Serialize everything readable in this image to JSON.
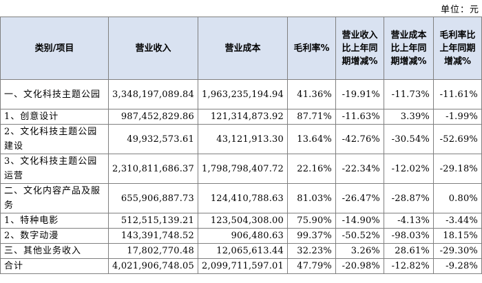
{
  "unit_label": "单位：元",
  "headers": {
    "category": "类别/项目",
    "revenue": "营业收入",
    "cost": "营业成本",
    "margin": "毛利率%",
    "rev_yoy": "营业收入比上年同期增减%",
    "cost_yoy": "营业成本比上年同期增减%",
    "margin_yoy": "毛利率比上年同期增减%"
  },
  "rows": [
    {
      "category": "一、文化科技主题公园",
      "revenue": "3,348,197,089.84",
      "cost": "1,963,235,194.94",
      "margin": "41.36%",
      "rev_yoy": "-19.91%",
      "cost_yoy": "-11.73%",
      "margin_yoy": "-11.61%"
    },
    {
      "category": "1、创意设计",
      "revenue": "987,452,829.86",
      "cost": "121,314,873.92",
      "margin": "87.71%",
      "rev_yoy": "-11.63%",
      "cost_yoy": "3.39%",
      "margin_yoy": "-1.99%"
    },
    {
      "category": "2、文化科技主题公园建设",
      "revenue": "49,932,573.61",
      "cost": "43,121,913.30",
      "margin": "13.64%",
      "rev_yoy": "-42.76%",
      "cost_yoy": "-30.54%",
      "margin_yoy": "-52.69%"
    },
    {
      "category": "3、文化科技主题公园运营",
      "revenue": "2,310,811,686.37",
      "cost": "1,798,798,407.72",
      "margin": "22.16%",
      "rev_yoy": "-22.34%",
      "cost_yoy": "-12.02%",
      "margin_yoy": "-29.18%"
    },
    {
      "category": "二、文化内容产品及服务",
      "revenue": "655,906,887.73",
      "cost": "124,410,788.63",
      "margin": "81.03%",
      "rev_yoy": "-26.47%",
      "cost_yoy": "-28.87%",
      "margin_yoy": "0.80%"
    },
    {
      "category": "1、特种电影",
      "revenue": "512,515,139.21",
      "cost": "123,504,308.00",
      "margin": "75.90%",
      "rev_yoy": "-14.90%",
      "cost_yoy": "-4.13%",
      "margin_yoy": "-3.44%"
    },
    {
      "category": "2、数字动漫",
      "revenue": "143,391,748.52",
      "cost": "906,480.63",
      "margin": "99.37%",
      "rev_yoy": "-50.52%",
      "cost_yoy": "-98.03%",
      "margin_yoy": "18.15%"
    },
    {
      "category": "三、其他业务收入",
      "revenue": "17,802,770.48",
      "cost": "12,065,613.44",
      "margin": "32.23%",
      "rev_yoy": "3.26%",
      "cost_yoy": "28.61%",
      "margin_yoy": "-29.30%"
    },
    {
      "category": "合计",
      "revenue": "4,021,906,748.05",
      "cost": "2,099,711,597.01",
      "margin": "47.79%",
      "rev_yoy": "-20.98%",
      "cost_yoy": "-12.82%",
      "margin_yoy": "-9.28%"
    }
  ]
}
